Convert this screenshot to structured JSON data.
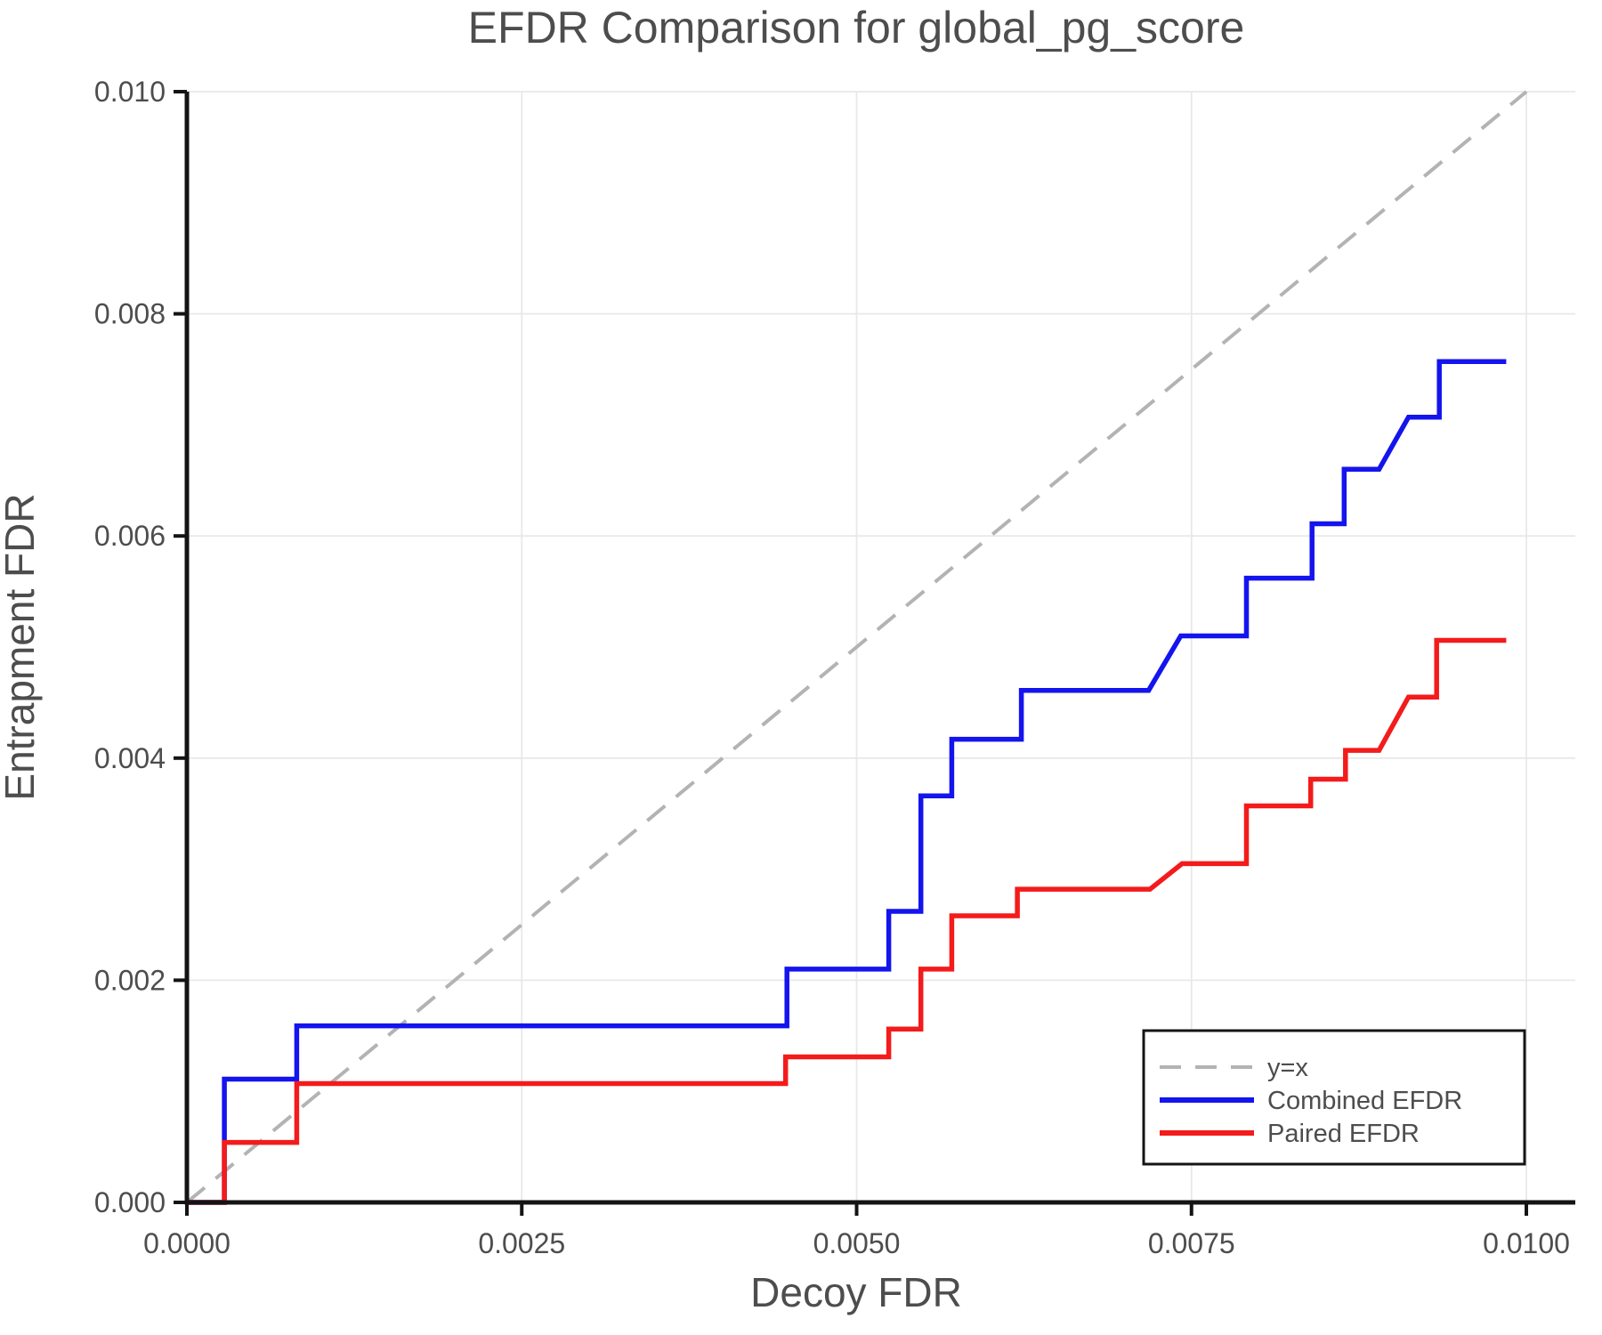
{
  "chart_data": {
    "type": "line",
    "title": "EFDR Comparison for global_pg_score",
    "xlabel": "Decoy FDR",
    "ylabel": "Entrapment FDR",
    "xlim": [
      0,
      0.010365
    ],
    "ylim": [
      0,
      0.01
    ],
    "grid": true,
    "legend_position": "lower right",
    "colors": {
      "axis": "#141414",
      "grid": "#e8e8e8",
      "text": "#4d4d4d",
      "identity": "#b3b3b3",
      "combined": "#1414ee",
      "paired": "#f31b1b"
    },
    "xticks": [
      {
        "v": 0.0,
        "label": "0.0000"
      },
      {
        "v": 0.0025,
        "label": "0.0025"
      },
      {
        "v": 0.005,
        "label": "0.0050"
      },
      {
        "v": 0.0075,
        "label": "0.0075"
      },
      {
        "v": 0.01,
        "label": "0.0100"
      }
    ],
    "yticks": [
      {
        "v": 0.0,
        "label": "0.000"
      },
      {
        "v": 0.002,
        "label": "0.002"
      },
      {
        "v": 0.004,
        "label": "0.004"
      },
      {
        "v": 0.006,
        "label": "0.006"
      },
      {
        "v": 0.008,
        "label": "0.008"
      },
      {
        "v": 0.01,
        "label": "0.010"
      }
    ],
    "identity_line": {
      "label": "y=x",
      "color": "#b3b3b3",
      "dashed": true,
      "points": [
        [
          0,
          0
        ],
        [
          0.01,
          0.01
        ]
      ]
    },
    "series": [
      {
        "name": "Combined EFDR",
        "color": "#1414ee",
        "points": [
          [
            0.0,
            0.0
          ],
          [
            0.00028,
            0.0
          ],
          [
            0.00028,
            0.00111
          ],
          [
            0.00082,
            0.00111
          ],
          [
            0.00082,
            0.00159
          ],
          [
            0.00448,
            0.00159
          ],
          [
            0.00448,
            0.0021
          ],
          [
            0.00524,
            0.0021
          ],
          [
            0.00524,
            0.00262
          ],
          [
            0.00548,
            0.00262
          ],
          [
            0.00548,
            0.00366
          ],
          [
            0.00571,
            0.00366
          ],
          [
            0.00571,
            0.00417
          ],
          [
            0.00623,
            0.00417
          ],
          [
            0.00623,
            0.00461
          ],
          [
            0.00718,
            0.00461
          ],
          [
            0.00742,
            0.0051
          ],
          [
            0.00791,
            0.0051
          ],
          [
            0.00791,
            0.00562
          ],
          [
            0.0084,
            0.00562
          ],
          [
            0.0084,
            0.00611
          ],
          [
            0.00864,
            0.00611
          ],
          [
            0.00864,
            0.0066
          ],
          [
            0.0089,
            0.0066
          ],
          [
            0.00912,
            0.00707
          ],
          [
            0.00935,
            0.00707
          ],
          [
            0.00935,
            0.00757
          ],
          [
            0.00985,
            0.00757
          ]
        ]
      },
      {
        "name": "Paired EFDR",
        "color": "#f31b1b",
        "points": [
          [
            0.0,
            0.0
          ],
          [
            0.00028,
            0.0
          ],
          [
            0.00028,
            0.00054
          ],
          [
            0.00082,
            0.00054
          ],
          [
            0.00082,
            0.00107
          ],
          [
            0.00447,
            0.00107
          ],
          [
            0.00447,
            0.00131
          ],
          [
            0.00524,
            0.00131
          ],
          [
            0.00524,
            0.00156
          ],
          [
            0.00548,
            0.00156
          ],
          [
            0.00548,
            0.0021
          ],
          [
            0.00571,
            0.0021
          ],
          [
            0.00571,
            0.00258
          ],
          [
            0.0062,
            0.00258
          ],
          [
            0.0062,
            0.00282
          ],
          [
            0.00719,
            0.00282
          ],
          [
            0.00743,
            0.00305
          ],
          [
            0.00791,
            0.00305
          ],
          [
            0.00791,
            0.00357
          ],
          [
            0.00839,
            0.00357
          ],
          [
            0.00839,
            0.00381
          ],
          [
            0.00865,
            0.00381
          ],
          [
            0.00865,
            0.00407
          ],
          [
            0.0089,
            0.00407
          ],
          [
            0.00912,
            0.00455
          ],
          [
            0.00933,
            0.00455
          ],
          [
            0.00933,
            0.00506
          ],
          [
            0.00985,
            0.00506
          ]
        ]
      }
    ],
    "legend": {
      "items": [
        {
          "label": "y=x"
        },
        {
          "label": "Combined EFDR"
        },
        {
          "label": "Paired EFDR"
        }
      ]
    }
  }
}
